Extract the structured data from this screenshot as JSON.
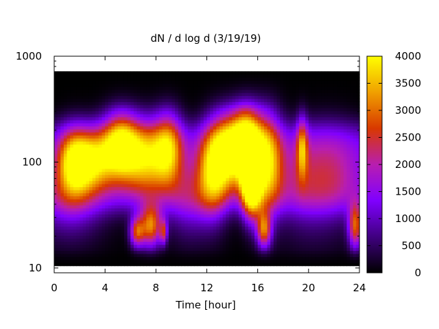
{
  "chart_data": {
    "type": "heatmap",
    "title": "dN / d log d (3/19/19)",
    "xlabel": "Time [hour]",
    "ylabel": "",
    "xlim": [
      0,
      24
    ],
    "ylim": [
      9,
      1000
    ],
    "yscale": "log",
    "x_ticks": [
      0,
      4,
      8,
      12,
      16,
      20,
      24
    ],
    "x_tick_labels": [
      "0",
      "4",
      "8",
      "12",
      "16",
      "20",
      "24"
    ],
    "y_ticks": [
      10,
      100,
      1000
    ],
    "y_tick_labels": [
      "10",
      "100",
      "1000"
    ],
    "colorbar": {
      "range": [
        0,
        4000
      ],
      "ticks": [
        0,
        500,
        1000,
        1500,
        2000,
        2500,
        3000,
        3500,
        4000
      ],
      "tick_labels": [
        "0",
        "500",
        "1000",
        "1500",
        "2000",
        "2500",
        "3000",
        "3500",
        "4000"
      ],
      "palette": [
        "#000000",
        "#400080",
        "#8000ff",
        "#b81eb0",
        "#d83800",
        "#f0a000",
        "#ffff00"
      ]
    },
    "grid": false,
    "features": [
      {
        "t": 1.5,
        "d": 100,
        "v": 2400,
        "st": 0.9,
        "sd": 0.22
      },
      {
        "t": 3.0,
        "d": 105,
        "v": 2500,
        "st": 1.2,
        "sd": 0.2
      },
      {
        "t": 5.2,
        "d": 150,
        "v": 3000,
        "st": 1.0,
        "sd": 0.22
      },
      {
        "t": 7.2,
        "d": 110,
        "v": 2500,
        "st": 1.3,
        "sd": 0.25
      },
      {
        "t": 9.0,
        "d": 140,
        "v": 2200,
        "st": 0.8,
        "sd": 0.25
      },
      {
        "t": 7.6,
        "d": 25,
        "v": 3000,
        "st": 0.6,
        "sd": 0.14
      },
      {
        "t": 6.5,
        "d": 22,
        "v": 2400,
        "st": 0.4,
        "sd": 0.1
      },
      {
        "t": 8.6,
        "d": 22,
        "v": 1800,
        "st": 0.2,
        "sd": 0.08
      },
      {
        "t": 12.5,
        "d": 80,
        "v": 2600,
        "st": 0.9,
        "sd": 0.3
      },
      {
        "t": 13.8,
        "d": 140,
        "v": 2800,
        "st": 1.0,
        "sd": 0.25
      },
      {
        "t": 15.5,
        "d": 60,
        "v": 3900,
        "st": 0.55,
        "sd": 0.22
      },
      {
        "t": 15.2,
        "d": 160,
        "v": 3300,
        "st": 0.8,
        "sd": 0.25
      },
      {
        "t": 16.8,
        "d": 100,
        "v": 2600,
        "st": 0.8,
        "sd": 0.35
      },
      {
        "t": 16.5,
        "d": 23,
        "v": 2600,
        "st": 0.4,
        "sd": 0.12
      },
      {
        "t": 19.5,
        "d": 140,
        "v": 2000,
        "st": 0.3,
        "sd": 0.2
      },
      {
        "t": 23.7,
        "d": 25,
        "v": 2700,
        "st": 0.4,
        "sd": 0.15
      },
      {
        "t": 1.2,
        "d": 40,
        "v": 1100,
        "st": 2.0,
        "sd": 0.25
      },
      {
        "t": 10.5,
        "d": 40,
        "v": 1000,
        "st": 1.2,
        "sd": 0.25
      },
      {
        "t": 19.5,
        "d": 60,
        "v": 900,
        "st": 1.5,
        "sd": 0.35
      },
      {
        "t": 22.0,
        "d": 70,
        "v": 950,
        "st": 1.5,
        "sd": 0.35
      }
    ]
  }
}
